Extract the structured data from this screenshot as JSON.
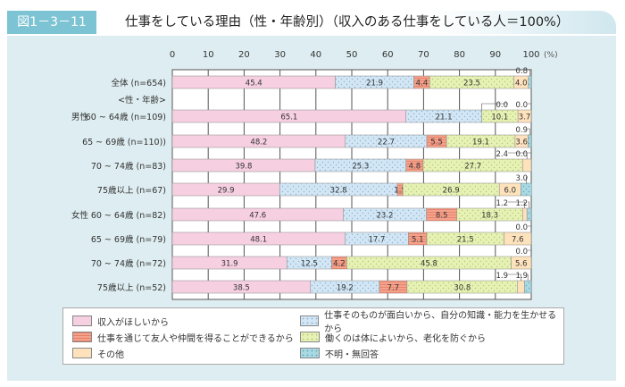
{
  "figure_number": "図1－3－11",
  "title": "仕事をしている理由（性・年齢別）（収入のある仕事をしている人＝100%）",
  "chart_data": {
    "type": "bar",
    "orientation": "horizontal",
    "stacked": true,
    "title": "仕事をしている理由（性・年齢別）（収入のある仕事をしている人＝100%）",
    "xlim": [
      0,
      100
    ],
    "xticks": [
      "0",
      "10",
      "20",
      "30",
      "40",
      "50",
      "60",
      "70",
      "80",
      "90",
      "100"
    ],
    "xunit": "(%)",
    "grid": true,
    "legend_position": "bottom",
    "group_label": "<性・年齢>",
    "categories": [
      {
        "group": "",
        "label": "全体 (n=654)"
      },
      {
        "group": "男性",
        "label": "60 ~ 64歳 (n=109)"
      },
      {
        "group": "",
        "label": "65 ~ 69歳 (n=110))"
      },
      {
        "group": "",
        "label": "70 ~ 74歳 (n=83)"
      },
      {
        "group": "",
        "label": "75歳以上 (n=67)"
      },
      {
        "group": "女性",
        "label": "60 ~ 64歳 (n=82)"
      },
      {
        "group": "",
        "label": "65 ~ 69歳 (n=79)"
      },
      {
        "group": "",
        "label": "70 ~ 74歳 (n=72)"
      },
      {
        "group": "",
        "label": "75歳以上 (n=52)"
      }
    ],
    "series": [
      {
        "name": "収入がほしいから",
        "color": "#f6cfe0",
        "values": [
          45.4,
          65.1,
          48.2,
          39.8,
          29.9,
          47.6,
          48.1,
          31.9,
          38.5
        ]
      },
      {
        "name": "仕事そのものが面白いから、自分の知識・能力を生かせるから",
        "color": "#d2e6f5",
        "values": [
          21.9,
          21.1,
          22.7,
          25.3,
          32.8,
          23.2,
          17.7,
          12.5,
          19.2
        ]
      },
      {
        "name": "仕事を通じて友人や仲間を得ることができるから",
        "color": "#f4a28c",
        "values": [
          4.4,
          0.0,
          5.5,
          4.8,
          1.5,
          8.5,
          5.1,
          4.2,
          7.7
        ]
      },
      {
        "name": "働くのは体によいから、老化を防ぐから",
        "color": "#e6f1b4",
        "values": [
          23.5,
          10.1,
          19.1,
          27.7,
          26.9,
          18.3,
          21.5,
          45.8,
          30.8
        ]
      },
      {
        "name": "その他",
        "color": "#fde2bc",
        "values": [
          4.0,
          3.7,
          3.6,
          2.4,
          6.0,
          1.2,
          7.6,
          5.6,
          1.9
        ]
      },
      {
        "name": "不明・無回答",
        "color": "#a9d9e3",
        "values": [
          0.8,
          0.0,
          0.9,
          0.0,
          3.0,
          1.2,
          0.0,
          0.0,
          1.9
        ]
      }
    ]
  }
}
